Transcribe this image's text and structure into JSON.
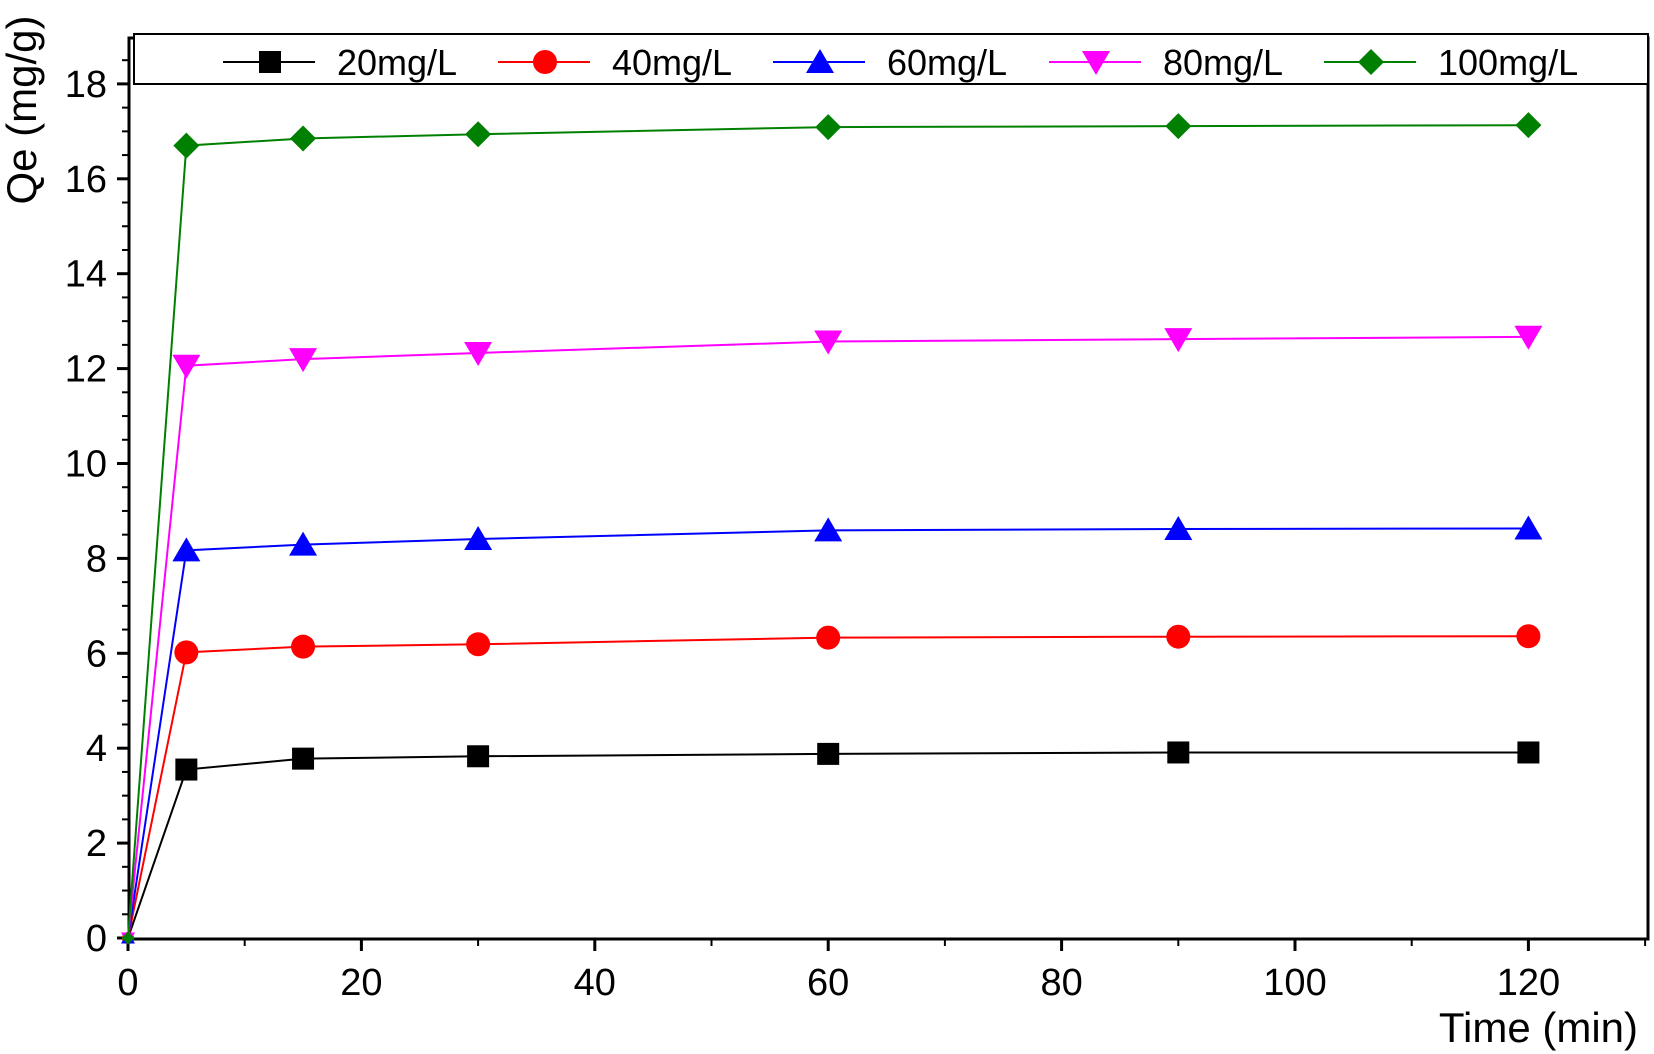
{
  "chart_data": {
    "type": "line",
    "title": "",
    "xlabel": "Time (min)",
    "ylabel": "Qe (mg/g)",
    "xlim": [
      0,
      130
    ],
    "ylim": [
      0,
      18.9
    ],
    "x_ticks": [
      0,
      20,
      40,
      60,
      80,
      100,
      120
    ],
    "x_tick_labels": [
      "0",
      "20",
      "40",
      "60",
      "80",
      "100",
      "120"
    ],
    "y_ticks": [
      0,
      2,
      4,
      6,
      8,
      10,
      12,
      14,
      16,
      18
    ],
    "y_tick_labels": [
      "0",
      "2",
      "4",
      "6",
      "8",
      "10",
      "12",
      "14",
      "16",
      "18"
    ],
    "grid": false,
    "legend_position": "top",
    "x": [
      0,
      5,
      15,
      30,
      60,
      90,
      120
    ],
    "series": [
      {
        "name": "20mg/L",
        "color": "#000000",
        "marker": "square",
        "values": [
          0,
          3.55,
          3.78,
          3.83,
          3.88,
          3.91,
          3.91
        ]
      },
      {
        "name": "40mg/L",
        "color": "#ff0000",
        "marker": "circle",
        "values": [
          0,
          6.02,
          6.14,
          6.19,
          6.33,
          6.35,
          6.36
        ]
      },
      {
        "name": "60mg/L",
        "color": "#0000ff",
        "marker": "triangle-up",
        "values": [
          0,
          8.17,
          8.29,
          8.41,
          8.59,
          8.62,
          8.63
        ]
      },
      {
        "name": "80mg/L",
        "color": "#ff00ff",
        "marker": "triangle-down",
        "values": [
          0,
          12.06,
          12.2,
          12.33,
          12.57,
          12.62,
          12.67
        ]
      },
      {
        "name": "100mg/L",
        "color": "#008000",
        "marker": "diamond",
        "values": [
          0,
          16.7,
          16.85,
          16.94,
          17.09,
          17.11,
          17.13
        ]
      }
    ]
  }
}
